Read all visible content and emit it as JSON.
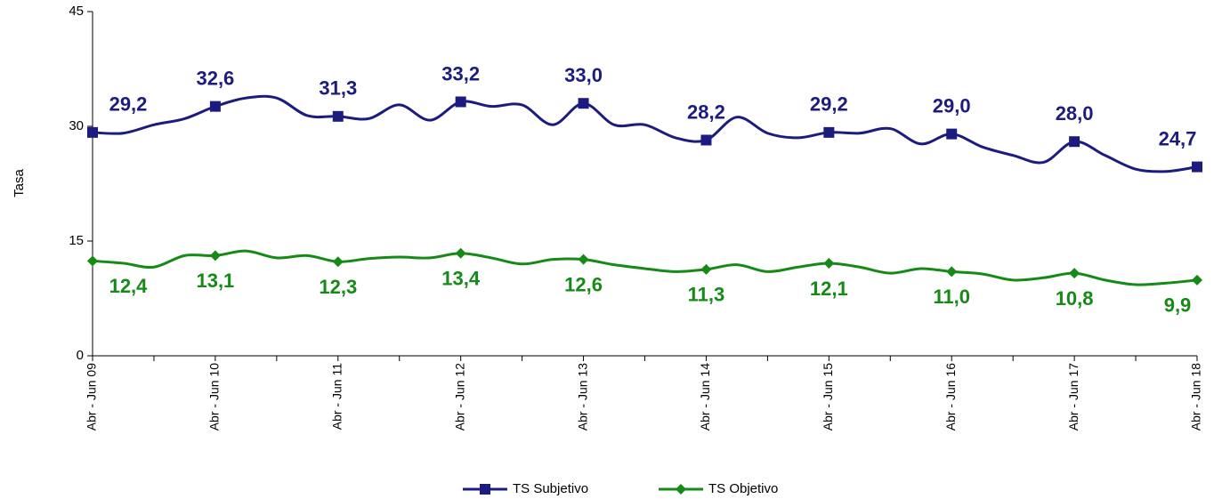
{
  "chart_data": {
    "type": "line",
    "y_label": "Tasa",
    "categories": [
      "Abr - Jun 09",
      null,
      null,
      null,
      "Abr - Jun 10",
      null,
      null,
      null,
      "Abr - Jun 11",
      null,
      null,
      null,
      "Abr - Jun 12",
      null,
      null,
      null,
      "Abr - Jun 13",
      null,
      null,
      null,
      "Abr - Jun 14",
      null,
      null,
      null,
      "Abr - Jun 15",
      null,
      null,
      null,
      "Abr - Jun 16",
      null,
      null,
      null,
      "Abr - Jun 17",
      null,
      null,
      null,
      "Abr - Jun 18"
    ],
    "series": [
      {
        "name": "TS Subjetivo",
        "color": "#1c1c80",
        "marker": "square",
        "values": [
          29.2,
          29.1,
          30.2,
          31.0,
          32.6,
          33.7,
          33.7,
          31.4,
          31.3,
          31.0,
          32.8,
          30.8,
          33.2,
          32.6,
          32.8,
          30.2,
          33.0,
          30.2,
          30.2,
          28.5,
          28.2,
          31.2,
          29.1,
          28.5,
          29.2,
          29.1,
          29.7,
          27.7,
          29.0,
          27.3,
          26.2,
          25.3,
          28.0,
          26.2,
          24.4,
          24.1,
          24.7
        ],
        "value_labels": [
          "29,2",
          null,
          null,
          null,
          "32,6",
          null,
          null,
          null,
          "31,3",
          null,
          null,
          null,
          "33,2",
          null,
          null,
          null,
          "33,0",
          null,
          null,
          null,
          "28,2",
          null,
          null,
          null,
          "29,2",
          null,
          null,
          null,
          "29,0",
          null,
          null,
          null,
          "28,0",
          null,
          null,
          null,
          "24,7"
        ]
      },
      {
        "name": "TS Objetivo",
        "color": "#168a16",
        "marker": "diamond",
        "values": [
          12.4,
          12.1,
          11.6,
          13.1,
          13.1,
          13.7,
          12.8,
          13.1,
          12.3,
          12.7,
          12.9,
          12.8,
          13.4,
          12.8,
          12.0,
          12.6,
          12.6,
          11.9,
          11.4,
          11.0,
          11.3,
          11.9,
          11.0,
          11.6,
          12.1,
          11.6,
          10.8,
          11.4,
          11.0,
          10.7,
          9.9,
          10.2,
          10.8,
          9.9,
          9.3,
          9.5,
          9.9
        ],
        "value_labels": [
          "12,4",
          null,
          null,
          null,
          "13,1",
          null,
          null,
          null,
          "12,3",
          null,
          null,
          null,
          "13,4",
          null,
          null,
          null,
          "12,6",
          null,
          null,
          null,
          "11,3",
          null,
          null,
          null,
          "12,1",
          null,
          null,
          null,
          "11,0",
          null,
          null,
          null,
          "10,8",
          null,
          null,
          null,
          "9,9"
        ]
      }
    ],
    "ylim": [
      0,
      45
    ],
    "yticks": [
      0,
      15,
      30,
      45
    ],
    "legend": "bottom"
  }
}
